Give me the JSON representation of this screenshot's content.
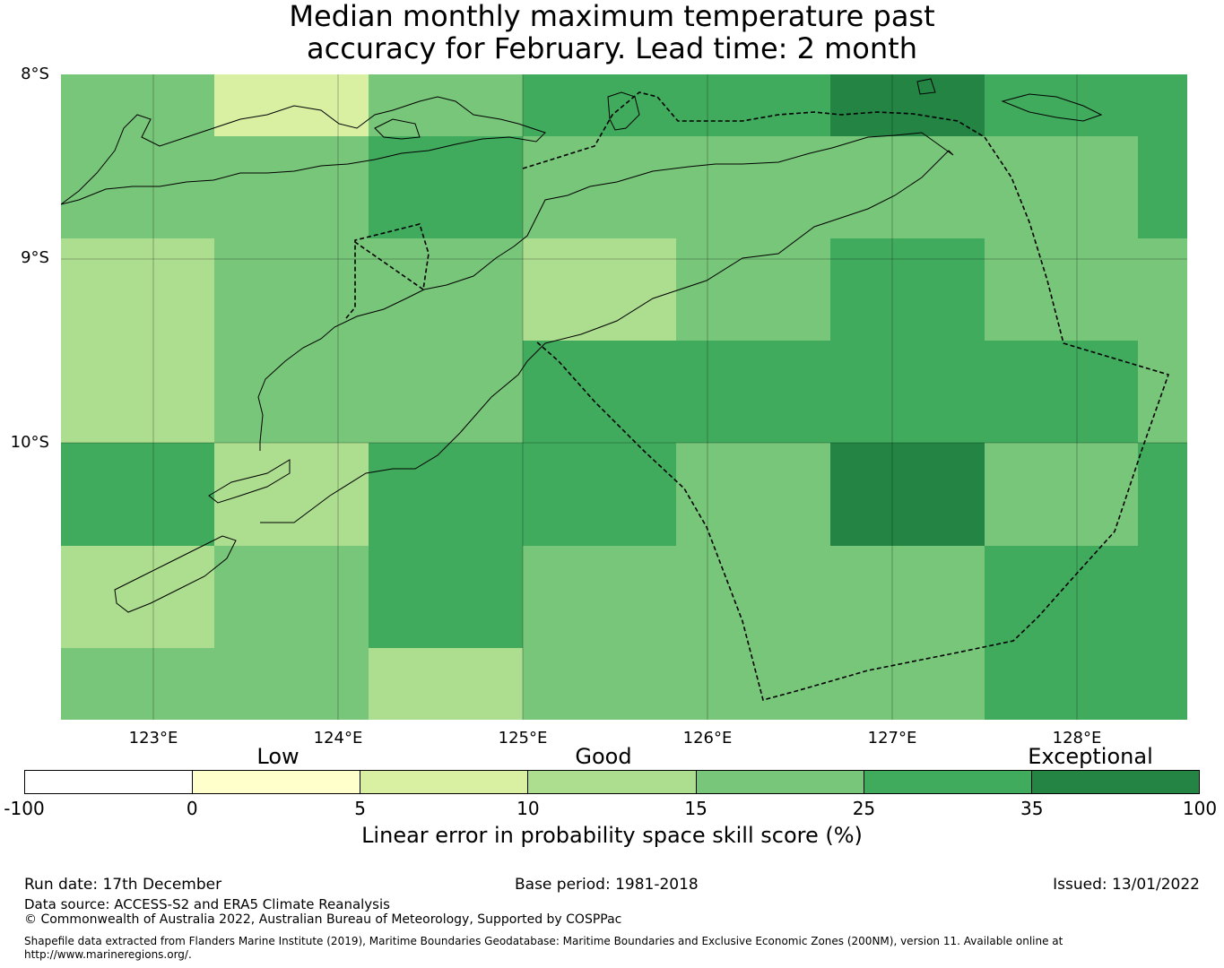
{
  "title_line1": "Median monthly maximum temperature past",
  "title_line2": "accuracy for February. Lead time: 2 month",
  "map": {
    "lat_labels": [
      "8°S",
      "9°S",
      "10°S"
    ],
    "lon_labels": [
      "123°E",
      "124°E",
      "125°E",
      "126°E",
      "127°E",
      "128°E"
    ],
    "grid_colors_legend": {
      "c5_10": "#d9f0a3",
      "c10_15": "#addd8e",
      "c15_25": "#78c679",
      "c25_35": "#41ab5d",
      "c35_100": "#238443"
    },
    "cells": [
      [
        "#78c679",
        "#d9f0a3",
        "#78c679",
        "#41ab5d",
        "#41ab5d",
        "#238443",
        "#41ab5d",
        "#41ab5d"
      ],
      [
        "#78c679",
        "#78c679",
        "#41ab5d",
        "#78c679",
        "#78c679",
        "#78c679",
        "#78c679",
        "#41ab5d"
      ],
      [
        "#addd8e",
        "#78c679",
        "#78c679",
        "#addd8e",
        "#78c679",
        "#41ab5d",
        "#78c679",
        "#78c679"
      ],
      [
        "#addd8e",
        "#78c679",
        "#78c679",
        "#41ab5d",
        "#41ab5d",
        "#41ab5d",
        "#41ab5d",
        "#78c679"
      ],
      [
        "#41ab5d",
        "#addd8e",
        "#41ab5d",
        "#41ab5d",
        "#78c679",
        "#238443",
        "#78c679",
        "#41ab5d"
      ],
      [
        "#addd8e",
        "#78c679",
        "#41ab5d",
        "#78c679",
        "#78c679",
        "#78c679",
        "#41ab5d",
        "#41ab5d"
      ],
      [
        "#78c679",
        "#78c679",
        "#addd8e",
        "#78c679",
        "#78c679",
        "#78c679",
        "#41ab5d",
        "#41ab5d"
      ]
    ]
  },
  "categories": {
    "low": "Low",
    "good": "Good",
    "exceptional": "Exceptional"
  },
  "colorbar": {
    "colors": [
      "#ffffff",
      "#ffffcc",
      "#d9f0a3",
      "#addd8e",
      "#78c679",
      "#41ab5d",
      "#238443"
    ],
    "ticks": [
      "-100",
      "0",
      "5",
      "10",
      "15",
      "25",
      "35",
      "100"
    ],
    "label": "Linear error in probability space skill score (%)"
  },
  "footer": {
    "run_date": "Run date: 17th December",
    "base_period": "Base period: 1981-2018",
    "issued": "Issued: 13/01/2022",
    "data_source": "Data source: ACCESS-S2 and ERA5 Climate Reanalysis",
    "copyright": "© Commonwealth of Australia 2022, Australian Bureau of Meteorology, Supported by COSPPac",
    "shapefile": "Shapefile data extracted from Flanders Marine Institute (2019), Maritime Boundaries Geodatabase: Maritime Boundaries and Exclusive Economic Zones (200NM), version 11. Available online at http://www.marineregions.org/."
  }
}
